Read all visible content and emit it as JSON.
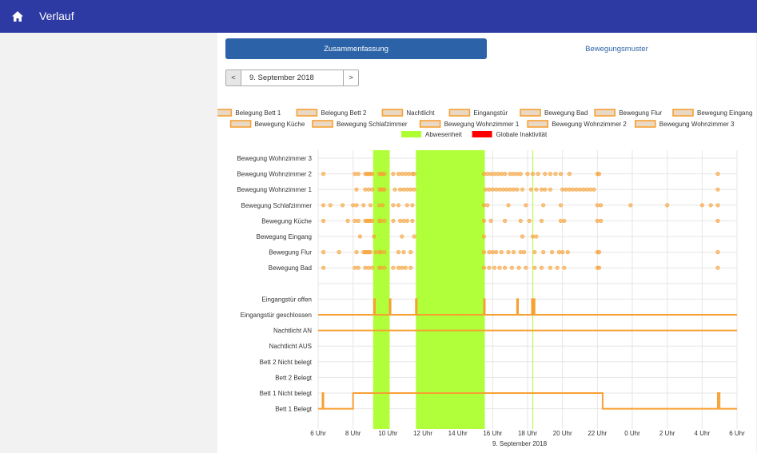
{
  "header": {
    "title": "Verlauf",
    "home_icon": "home-icon"
  },
  "tabs": [
    {
      "label": "Zusammenfassung",
      "active": true
    },
    {
      "label": "Bewegungsmuster",
      "active": false
    }
  ],
  "datepicker": {
    "prev_label": "<",
    "next_label": ">",
    "value": "9. September 2018"
  },
  "colors": {
    "header": "#2e3aa3",
    "tab_active": "#2c63a8",
    "series": "#f7a033",
    "absence": "#adff2f",
    "inactivity": "#ff0000"
  },
  "chart_data": {
    "type": "scatter",
    "xlabel": "9. September 2018",
    "x_ticks": [
      "6 Uhr",
      "8 Uhr",
      "10 Uhr",
      "12 Uhr",
      "14 Uhr",
      "16 Uhr",
      "18 Uhr",
      "20 Uhr",
      "22 Uhr",
      "0 Uhr",
      "2 Uhr",
      "4 Uhr",
      "6 Uhr"
    ],
    "xlim_hours": [
      6,
      30
    ],
    "grid": true,
    "legend_position": "top",
    "legend": [
      {
        "label": "Belegung Bett 1",
        "kind": "box"
      },
      {
        "label": "Belegung Bett 2",
        "kind": "box"
      },
      {
        "label": "Nachtlicht",
        "kind": "box"
      },
      {
        "label": "Eingangstür",
        "kind": "box"
      },
      {
        "label": "Bewegung Bad",
        "kind": "box"
      },
      {
        "label": "Bewegung Flur",
        "kind": "box"
      },
      {
        "label": "Bewegung Eingang",
        "kind": "box"
      },
      {
        "label": "Bewegung Küche",
        "kind": "box"
      },
      {
        "label": "Bewegung Schlafzimmer",
        "kind": "box"
      },
      {
        "label": "Bewegung Wohnzimmer 1",
        "kind": "box"
      },
      {
        "label": "Bewegung Wohnzimmer 2",
        "kind": "box"
      },
      {
        "label": "Bewegung Wohnzimmer 3",
        "kind": "box"
      },
      {
        "label": "Abwesenheit",
        "kind": "absence"
      },
      {
        "label": "Globale Inaktivität",
        "kind": "inactivity"
      }
    ],
    "y_categories": [
      "Bewegung Wohnzimmer 3",
      "Bewegung Wohnzimmer 2",
      "Bewegung Wohnzimmer 1",
      "Bewegung Schlafzimmer",
      "Bewegung Küche",
      "Bewegung Eingang",
      "Bewegung Flur",
      "Bewegung Bad",
      "",
      "Eingangstür offen",
      "Eingangstür geschlossen",
      "Nachtlicht AN",
      "Nachtlicht AUS",
      "Bett 2 Nicht belegt",
      "Bett 2 Belegt",
      "Bett 1 Nicht belegt",
      "Bett 1 Belegt"
    ],
    "absence_intervals": [
      [
        9.15,
        10.1
      ],
      [
        11.6,
        15.55
      ]
    ],
    "inactivity_marks": [
      18.3
    ],
    "motion_events": [
      {
        "name": "Bewegung Wohnzimmer 2",
        "times": [
          6.3,
          8.1,
          8.3,
          8.7,
          8.8,
          8.9,
          9.0,
          9.1,
          9.5,
          9.6,
          9.7,
          9.8,
          10.3,
          10.6,
          10.8,
          11.0,
          11.2,
          11.4,
          11.5,
          15.5,
          15.7,
          15.9,
          16.1,
          16.3,
          16.5,
          16.7,
          17.0,
          17.2,
          17.4,
          17.6,
          18.0,
          18.3,
          18.6,
          19.0,
          19.3,
          19.6,
          19.9,
          20.4,
          22.0,
          22.1,
          28.9
        ]
      },
      {
        "name": "Bewegung Wohnzimmer 1",
        "times": [
          8.2,
          8.7,
          8.9,
          9.1,
          9.5,
          9.6,
          9.7,
          9.8,
          10.4,
          10.7,
          10.9,
          11.1,
          11.3,
          11.5,
          15.6,
          15.8,
          16.0,
          16.2,
          16.4,
          16.6,
          16.8,
          17.0,
          17.2,
          17.4,
          17.7,
          18.2,
          18.5,
          18.8,
          19.0,
          19.3,
          20.0,
          20.2,
          20.4,
          20.6,
          20.8,
          21.0,
          21.2,
          21.4,
          21.6,
          21.8,
          28.9
        ]
      },
      {
        "name": "Bewegung Schlafzimmer",
        "times": [
          6.3,
          6.7,
          7.4,
          8.0,
          8.2,
          8.6,
          9.0,
          9.5,
          9.7,
          10.3,
          10.6,
          11.1,
          11.4,
          15.5,
          15.7,
          16.9,
          17.9,
          18.9,
          19.9,
          22.0,
          22.2,
          23.9,
          26.0,
          28.0,
          28.5,
          28.9
        ]
      },
      {
        "name": "Bewegung Küche",
        "times": [
          6.3,
          7.7,
          8.1,
          8.3,
          8.7,
          8.8,
          8.9,
          9.0,
          9.1,
          9.5,
          9.6,
          9.8,
          10.3,
          10.7,
          10.9,
          11.1,
          11.4,
          15.5,
          15.9,
          16.7,
          17.6,
          18.1,
          18.8,
          19.9,
          20.1,
          22.0,
          22.2,
          28.9
        ]
      },
      {
        "name": "Bewegung Eingang",
        "times": [
          8.4,
          9.2,
          10.8,
          11.5,
          15.5,
          17.7,
          18.3,
          18.5
        ]
      },
      {
        "name": "Bewegung Flur",
        "times": [
          6.3,
          7.2,
          8.2,
          8.6,
          8.7,
          8.8,
          8.9,
          9.0,
          9.3,
          9.5,
          9.6,
          9.8,
          10.6,
          10.9,
          11.3,
          15.5,
          15.8,
          16.0,
          16.2,
          16.5,
          16.9,
          17.2,
          17.6,
          17.8,
          18.4,
          18.9,
          19.4,
          19.8,
          20.0,
          20.3,
          22.0,
          22.1,
          28.9
        ]
      },
      {
        "name": "Bewegung Bad",
        "times": [
          6.3,
          8.1,
          8.3,
          8.7,
          8.9,
          9.1,
          9.5,
          9.6,
          9.8,
          10.3,
          10.6,
          10.8,
          11.0,
          11.3,
          15.5,
          15.8,
          16.1,
          16.4,
          16.7,
          17.1,
          17.5,
          17.9,
          18.4,
          18.8,
          19.3,
          19.7,
          20.1,
          22.0,
          22.1,
          28.9
        ]
      }
    ],
    "state_lines": [
      {
        "name": "Eingangstür",
        "low": "Eingangstür geschlossen",
        "high": "Eingangstür offen",
        "start_low": true,
        "transitions": [
          9.2,
          9.25,
          10.1,
          10.15,
          11.6,
          11.65,
          15.5,
          15.55,
          17.4,
          17.45,
          18.25,
          18.3,
          18.35,
          18.4
        ]
      },
      {
        "name": "Nachtlicht",
        "constant": "Nachtlicht AN"
      },
      {
        "name": "Belegung Bett 1",
        "low": "Bett 1 Belegt",
        "high": "Bett 1 Nicht belegt",
        "start_low": true,
        "transitions": [
          6.25,
          6.3,
          8.0,
          22.3,
          28.9,
          29.0
        ]
      }
    ]
  }
}
